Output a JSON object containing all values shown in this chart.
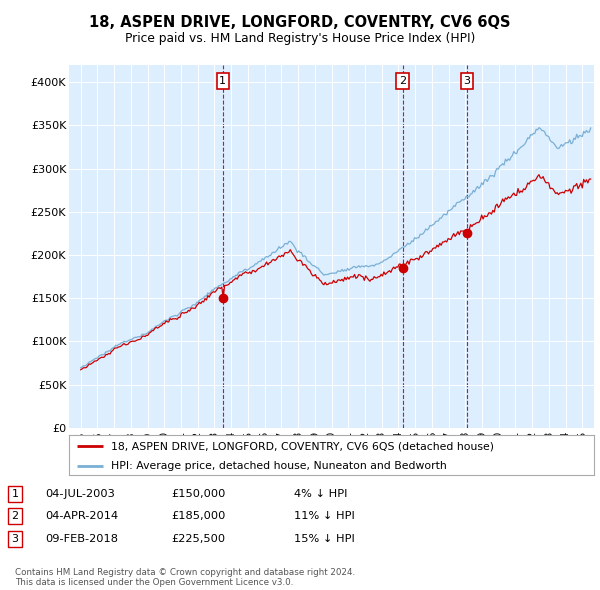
{
  "title": "18, ASPEN DRIVE, LONGFORD, COVENTRY, CV6 6QS",
  "subtitle": "Price paid vs. HM Land Registry's House Price Index (HPI)",
  "bg_color": "#ddeeff",
  "sale_dates_num": [
    2003.5,
    2014.25,
    2018.1
  ],
  "sale_prices": [
    150000,
    185000,
    225500
  ],
  "sale_labels": [
    "1",
    "2",
    "3"
  ],
  "legend_line1": "18, ASPEN DRIVE, LONGFORD, COVENTRY, CV6 6QS (detached house)",
  "legend_line2": "HPI: Average price, detached house, Nuneaton and Bedworth",
  "table_rows": [
    [
      "1",
      "04-JUL-2003",
      "£150,000",
      "4% ↓ HPI"
    ],
    [
      "2",
      "04-APR-2014",
      "£185,000",
      "11% ↓ HPI"
    ],
    [
      "3",
      "09-FEB-2018",
      "£225,500",
      "15% ↓ HPI"
    ]
  ],
  "footer": "Contains HM Land Registry data © Crown copyright and database right 2024.\nThis data is licensed under the Open Government Licence v3.0.",
  "red_color": "#cc0000",
  "blue_color": "#7ab0d4",
  "dashed_color": "#cc0000",
  "xlim": [
    1994.3,
    2025.7
  ],
  "ylim": [
    0,
    420000
  ],
  "yticks": [
    0,
    50000,
    100000,
    150000,
    200000,
    250000,
    300000,
    350000,
    400000
  ],
  "ylabels": [
    "£0",
    "£50K",
    "£100K",
    "£150K",
    "£200K",
    "£250K",
    "£300K",
    "£350K",
    "£400K"
  ]
}
